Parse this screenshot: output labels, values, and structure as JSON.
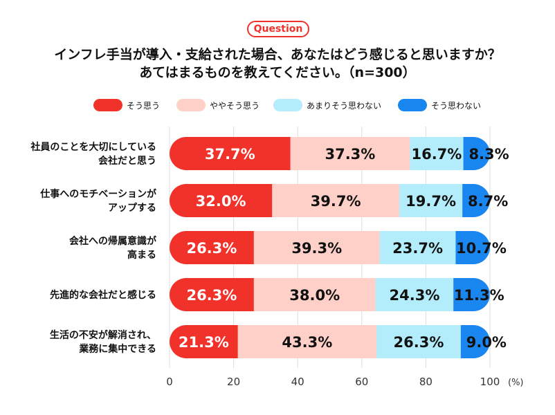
{
  "badge": "Question",
  "title_line1": "インフレ手当が導入・支給された場合、あなたはどう感じると思いますか？",
  "title_line2": "あてはまるものを教えてください。（n=300）",
  "legend": [
    {
      "label": "そう思う",
      "color": "#f0322a"
    },
    {
      "label": "ややそう思う",
      "color": "#ffd0c8"
    },
    {
      "label": "あまりそう思わない",
      "color": "#b3ecfb"
    },
    {
      "label": "そう思わない",
      "color": "#1a86f0"
    }
  ],
  "chart_data": {
    "type": "bar",
    "orientation": "horizontal-stacked",
    "categories": [
      [
        "社員のことを大切にしている",
        "会社だと思う"
      ],
      [
        "仕事へのモチベーションが",
        "アップする"
      ],
      [
        "会社への帰属意識が",
        "高まる"
      ],
      [
        "先進的な会社だと感じる"
      ],
      [
        "生活の不安が解消され、",
        "業務に集中できる"
      ]
    ],
    "series": [
      {
        "name": "そう思う",
        "values": [
          37.7,
          32.0,
          26.3,
          26.3,
          21.3
        ],
        "labels": [
          "37.7%",
          "32.0%",
          "26.3%",
          "26.3%",
          "21.3%"
        ]
      },
      {
        "name": "ややそう思う",
        "values": [
          37.3,
          39.7,
          39.3,
          38.0,
          43.3
        ],
        "labels": [
          "37.3%",
          "39.7%",
          "39.3%",
          "38.0%",
          "43.3%"
        ]
      },
      {
        "name": "あまりそう思わない",
        "values": [
          16.7,
          19.7,
          23.7,
          24.3,
          26.3
        ],
        "labels": [
          "16.7%",
          "19.7%",
          "23.7%",
          "24.3%",
          "26.3%"
        ]
      },
      {
        "name": "そう思わない",
        "values": [
          8.3,
          8.7,
          10.7,
          11.3,
          9.0
        ],
        "labels": [
          "8.3%",
          "8.7%",
          "10.7%",
          "11.3%",
          "9.0%"
        ]
      }
    ],
    "xticks": [
      "0",
      "20",
      "40",
      "60",
      "80",
      "100"
    ],
    "xunit": "(%)",
    "xlim": [
      0,
      100
    ],
    "grid": true
  }
}
